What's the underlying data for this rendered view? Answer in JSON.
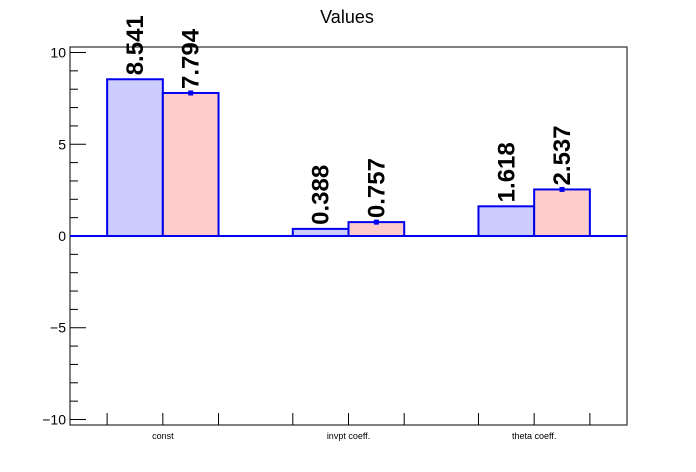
{
  "chart_data": {
    "type": "bar",
    "title": "Values",
    "categories": [
      "const",
      "invpt coeff.",
      "theta coeff."
    ],
    "series": [
      {
        "values": [
          8.541,
          0.388,
          1.618
        ],
        "data_labels": [
          "8.541",
          "0.388",
          "1.618"
        ],
        "fill": "#ccccff",
        "stroke": "#0000ee"
      },
      {
        "values": [
          7.794,
          0.757,
          2.537
        ],
        "data_labels": [
          "7.794",
          "0.757",
          "2.537"
        ],
        "fill": "#ffcccc",
        "stroke": "#0000ee",
        "error_bars": true
      }
    ],
    "ylim": [
      -10.3,
      10.3
    ],
    "yticks": [
      -10,
      -5,
      0,
      5,
      10
    ],
    "ytick_labels": [
      "−10",
      "−5",
      "0",
      "5",
      "10"
    ],
    "grid": false,
    "legend": "none",
    "zero_line_color": "#0000ee"
  }
}
